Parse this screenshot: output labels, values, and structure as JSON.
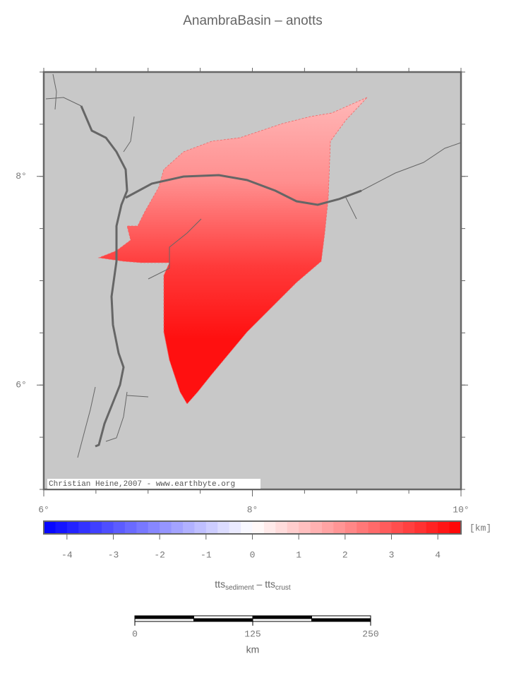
{
  "title": "AnambraBasin – anotts",
  "map": {
    "lon_lim": [
      6,
      10
    ],
    "lat_lim": [
      5,
      9
    ],
    "minor_step": 0.5,
    "lon_ticks": [
      {
        "value": 6,
        "label": "6°"
      },
      {
        "value": 8,
        "label": "8°"
      },
      {
        "value": 10,
        "label": "10°"
      }
    ],
    "lat_ticks": [
      {
        "value": 6,
        "label": "6°"
      },
      {
        "value": 8,
        "label": "8°"
      }
    ],
    "credit": "Christian Heine,2007 - www.earthbyte.org"
  },
  "colorbar": {
    "lim": [
      -4.5,
      4.5
    ],
    "step": 0.25,
    "ticks": [
      -4,
      -3,
      -2,
      -1,
      0,
      1,
      2,
      3,
      4
    ],
    "unit": "[km]",
    "label": {
      "main1": "tts",
      "sub1": "sediment",
      "sep": " – ",
      "main2": "tts",
      "sub2": "crust"
    }
  },
  "scale_bar": {
    "lim": [
      0,
      250
    ],
    "segments": 4,
    "ticks": [
      0,
      125,
      250
    ],
    "unit": "km"
  }
}
